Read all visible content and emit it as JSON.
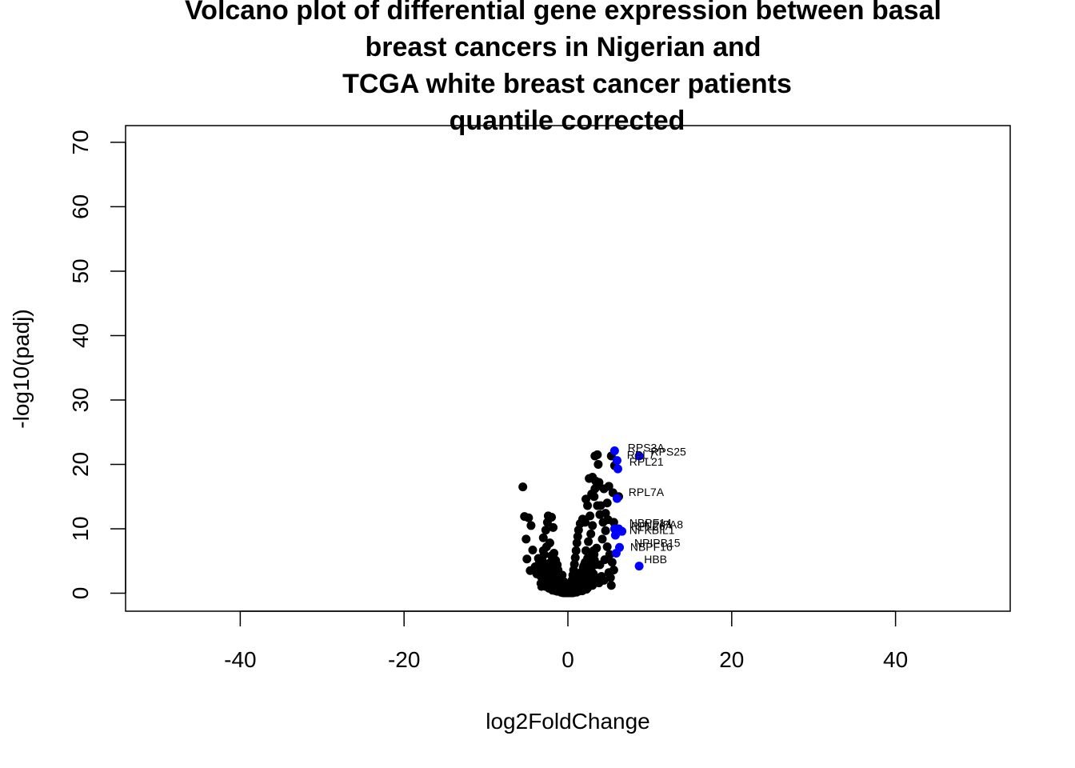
{
  "chart_data": {
    "type": "scatter",
    "title_lines": [
      "Volcano plot of differential gene expression between basal",
      "breast cancers in Nigerian and",
      "TCGA white breast cancer patients",
      "quantile corrected"
    ],
    "xlabel": "log2FoldChange",
    "ylabel": "-log10(padj)",
    "xlim": [
      -54,
      54
    ],
    "ylim": [
      -2.8,
      72.6
    ],
    "xticks": [
      -40,
      -20,
      0,
      20,
      40
    ],
    "xtick_labels": [
      "-40",
      "-20",
      "0",
      "20",
      "40"
    ],
    "yticks": [
      0,
      10,
      20,
      30,
      40,
      50,
      60,
      70
    ],
    "ytick_labels": [
      "0",
      "10",
      "20",
      "30",
      "40",
      "50",
      "60",
      "70"
    ],
    "grid": false,
    "colors": {
      "background": "#ffffff",
      "default_points": "#000000",
      "highlighted_points": "#0000ff"
    },
    "series": [
      {
        "color": "#000000",
        "points": [
          [
            -5.5,
            16.5
          ],
          [
            -5.3,
            11.9
          ],
          [
            -4.8,
            11.7
          ],
          [
            -4.5,
            10.5
          ],
          [
            -5.1,
            8.4
          ],
          [
            -5.0,
            5.3
          ],
          [
            -4.6,
            3.5
          ],
          [
            -3.6,
            5.4
          ],
          [
            -4.3,
            6.7
          ],
          [
            -3.5,
            4.6
          ],
          [
            -2.4,
            12.0
          ],
          [
            -2.5,
            11.0
          ],
          [
            -2.0,
            11.8
          ],
          [
            -2.7,
            9.8
          ],
          [
            -3.0,
            8.6
          ],
          [
            -2.6,
            7.2
          ],
          [
            -3.0,
            6.6
          ],
          [
            -1.8,
            10.2
          ],
          [
            -2.2,
            7.8
          ],
          [
            -2.9,
            6.0
          ],
          [
            -3.2,
            3.6
          ],
          [
            -2.6,
            2.8
          ],
          [
            -2.1,
            4.4
          ],
          [
            -1.7,
            6.2
          ],
          [
            -1.5,
            5.1
          ],
          [
            -1.9,
            3.2
          ],
          [
            -1.4,
            2.0
          ],
          [
            -1.2,
            3.6
          ],
          [
            -1.0,
            2.4
          ],
          [
            -0.8,
            1.6
          ],
          [
            -0.6,
            1.0
          ],
          [
            -0.4,
            0.6
          ],
          [
            -0.2,
            0.3
          ],
          [
            -0.1,
            0.1
          ],
          [
            -1.1,
            1.2
          ],
          [
            -0.9,
            0.7
          ],
          [
            -1.6,
            1.5
          ],
          [
            -2.3,
            2.2
          ],
          [
            -2.8,
            1.8
          ],
          [
            -3.3,
            2.6
          ],
          [
            -0.7,
            2.8
          ],
          [
            -0.5,
            1.8
          ],
          [
            -1.3,
            4.4
          ],
          [
            -2.0,
            5.8
          ],
          [
            -2.4,
            3.8
          ],
          [
            -3.8,
            3.0
          ],
          [
            -4.0,
            4.1
          ],
          [
            -3.1,
            5.0
          ],
          [
            -1.8,
            1.0
          ],
          [
            -1.0,
            0.5
          ],
          [
            0.1,
            0.1
          ],
          [
            0.2,
            0.4
          ],
          [
            0.3,
            0.8
          ],
          [
            0.4,
            1.3
          ],
          [
            0.5,
            2.0
          ],
          [
            0.6,
            2.8
          ],
          [
            0.7,
            3.6
          ],
          [
            0.8,
            4.5
          ],
          [
            0.9,
            5.5
          ],
          [
            1.0,
            6.6
          ],
          [
            1.1,
            7.8
          ],
          [
            1.2,
            8.8
          ],
          [
            1.3,
            9.8
          ],
          [
            1.5,
            10.8
          ],
          [
            1.8,
            11.5
          ],
          [
            2.1,
            11.0
          ],
          [
            1.4,
            1.0
          ],
          [
            1.7,
            1.6
          ],
          [
            2.0,
            2.4
          ],
          [
            2.3,
            3.2
          ],
          [
            2.6,
            4.0
          ],
          [
            2.9,
            5.0
          ],
          [
            3.2,
            6.0
          ],
          [
            3.5,
            7.0
          ],
          [
            2.2,
            6.6
          ],
          [
            2.5,
            8.0
          ],
          [
            2.8,
            9.2
          ],
          [
            3.0,
            10.5
          ],
          [
            2.7,
            12.0
          ],
          [
            2.4,
            13.6
          ],
          [
            2.2,
            14.6
          ],
          [
            2.9,
            15.4
          ],
          [
            3.3,
            16.2
          ],
          [
            3.8,
            17.2
          ],
          [
            2.6,
            17.8
          ],
          [
            3.2,
            15.0
          ],
          [
            3.6,
            13.6
          ],
          [
            3.9,
            12.2
          ],
          [
            4.3,
            11.0
          ],
          [
            4.6,
            9.7
          ],
          [
            4.2,
            8.4
          ],
          [
            4.8,
            7.2
          ],
          [
            5.1,
            6.0
          ],
          [
            5.4,
            4.8
          ],
          [
            5.6,
            3.6
          ],
          [
            5.2,
            2.4
          ],
          [
            4.4,
            2.0
          ],
          [
            3.8,
            1.6
          ],
          [
            3.0,
            1.2
          ],
          [
            2.2,
            0.9
          ],
          [
            5.3,
            1.2
          ],
          [
            4.8,
            14.0
          ],
          [
            5.0,
            16.6
          ],
          [
            5.5,
            15.6
          ],
          [
            4.4,
            16.2
          ],
          [
            3.7,
            20.0
          ],
          [
            3.3,
            21.3
          ],
          [
            3.6,
            21.5
          ],
          [
            5.3,
            21.3
          ],
          [
            6.2,
            15.0
          ],
          [
            5.7,
            19.8
          ],
          [
            5.6,
            11.0
          ],
          [
            4.9,
            11.4
          ],
          [
            3.4,
            17.4
          ],
          [
            3.6,
            16.6
          ],
          [
            3.0,
            18.0
          ],
          [
            4.0,
            13.6
          ],
          [
            4.6,
            12.4
          ],
          [
            3.0,
            3.0
          ],
          [
            2.0,
            1.0
          ],
          [
            1.2,
            0.5
          ],
          [
            1.6,
            2.5
          ],
          [
            1.9,
            4.0
          ],
          [
            2.4,
            5.4
          ],
          [
            3.9,
            4.4
          ],
          [
            4.5,
            5.2
          ],
          [
            5.0,
            3.2
          ],
          [
            4.1,
            2.6
          ],
          [
            3.4,
            2.2
          ],
          [
            2.6,
            2.0
          ]
        ]
      },
      {
        "color": "#0000ff",
        "points": [
          [
            5.7,
            22.1
          ],
          [
            8.7,
            21.3
          ],
          [
            6.0,
            20.6
          ],
          [
            6.1,
            19.3
          ],
          [
            6.0,
            14.7
          ],
          [
            5.7,
            10.0
          ],
          [
            6.2,
            10.0
          ],
          [
            6.6,
            9.6
          ],
          [
            5.8,
            9.0
          ],
          [
            6.3,
            7.1
          ],
          [
            5.9,
            6.2
          ],
          [
            8.7,
            4.2
          ]
        ]
      }
    ],
    "annotations": [
      {
        "text": "RPS3A",
        "x": 7.3,
        "y": 22.6
      },
      {
        "text": "RPL7",
        "x": 7.2,
        "y": 21.5
      },
      {
        "text": "RPS25",
        "x": 10.1,
        "y": 22.0
      },
      {
        "text": "RPL21",
        "x": 7.5,
        "y": 20.4
      },
      {
        "text": "RPL7A",
        "x": 7.4,
        "y": 15.7
      },
      {
        "text": "NBPF14",
        "x": 7.5,
        "y": 10.9
      },
      {
        "text": "NPIPA8",
        "x": 9.3,
        "y": 10.7
      },
      {
        "text": "RPL26A",
        "x": 7.7,
        "y": 10.4
      },
      {
        "text": "NFKBIL1",
        "x": 7.5,
        "y": 9.8
      },
      {
        "text": "NPIPB15",
        "x": 8.1,
        "y": 7.8
      },
      {
        "text": "NBPF16",
        "x": 7.6,
        "y": 7.2
      },
      {
        "text": "HBB",
        "x": 9.3,
        "y": 5.3
      }
    ]
  }
}
